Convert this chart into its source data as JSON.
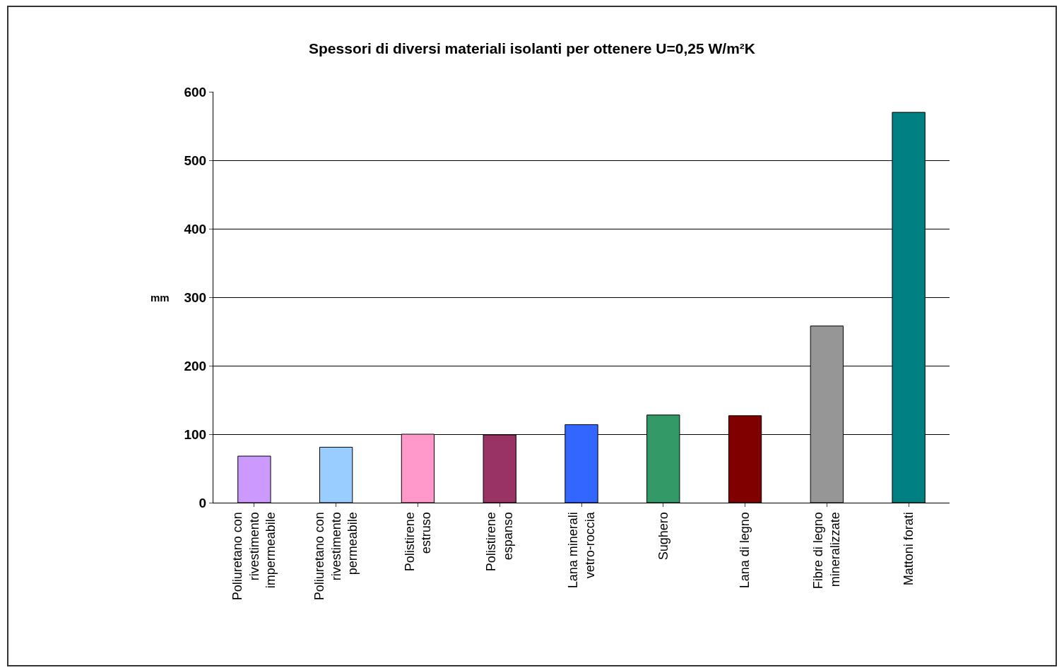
{
  "chart_data": {
    "type": "bar",
    "title": "Spessori di diversi materiali isolanti per ottenere U=0,25 W/m²K",
    "ylabel": "mm",
    "categories": [
      "Poliuretano con\nrivestimento\nimpermeabile",
      "Poliuretano con\nrivestimento\npermeabile",
      "Polistirene\nestruso",
      "Polistirene\nespanso",
      "Lana minerali\nvetro-roccia",
      "Sughero",
      "Lana di legno",
      "Fibre di legno\nmineralizzate",
      "Mattoni forati"
    ],
    "values": [
      68,
      81,
      100,
      99,
      114,
      128,
      127,
      258,
      570
    ],
    "colors": [
      "#cc99ff",
      "#99ccff",
      "#ff99cc",
      "#993366",
      "#3366ff",
      "#339966",
      "#800000",
      "#969696",
      "#008080"
    ],
    "ylim": [
      0,
      600
    ],
    "yticks": [
      0,
      100,
      200,
      300,
      400,
      500,
      600
    ],
    "grid": "y"
  }
}
